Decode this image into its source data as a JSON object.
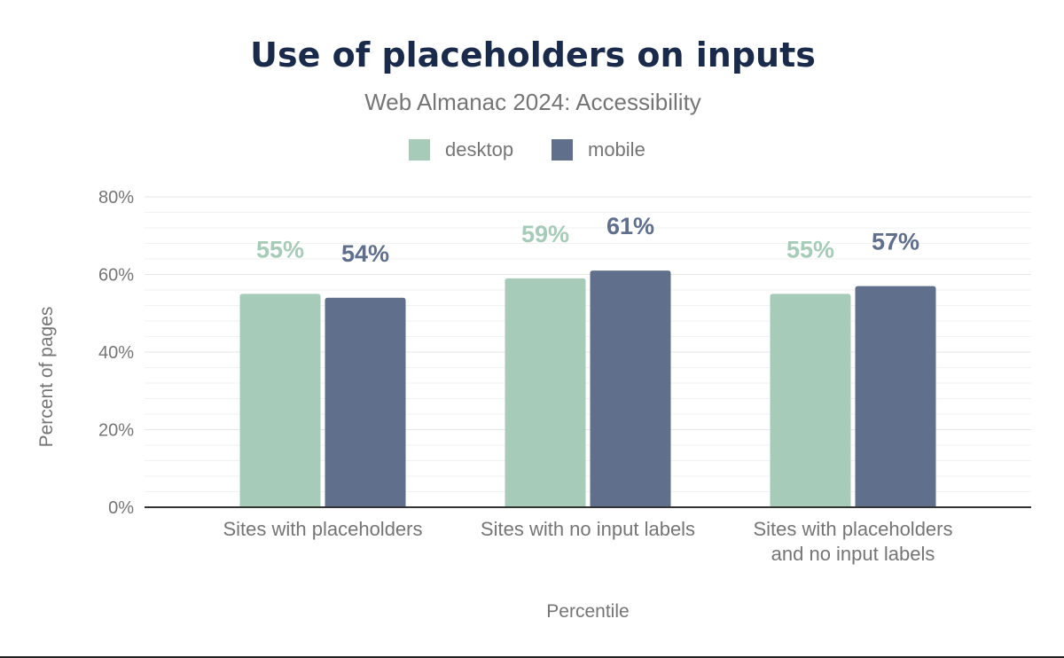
{
  "chart_data": {
    "type": "bar",
    "title": "Use of placeholders on inputs",
    "subtitle": "Web Almanac 2024: Accessibility",
    "xlabel": "Percentile",
    "ylabel": "Percent of pages",
    "ylim": [
      0,
      80
    ],
    "yticks": [
      {
        "value": 0,
        "label": "0%"
      },
      {
        "value": 20,
        "label": "20%"
      },
      {
        "value": 40,
        "label": "40%"
      },
      {
        "value": 60,
        "label": "60%"
      },
      {
        "value": 80,
        "label": "80%"
      }
    ],
    "categories": [
      [
        "Sites with placeholders"
      ],
      [
        "Sites with no input labels"
      ],
      [
        "Sites with placeholders",
        "and no input labels"
      ]
    ],
    "series": [
      {
        "name": "desktop",
        "color": "#a6cbb8",
        "values": [
          55,
          59,
          55
        ],
        "labels": [
          "55%",
          "59%",
          "55%"
        ]
      },
      {
        "name": "mobile",
        "color": "#5f6f8c",
        "values": [
          54,
          61,
          57
        ],
        "labels": [
          "54%",
          "61%",
          "57%"
        ]
      }
    ],
    "legend": "top",
    "grid": true
  }
}
